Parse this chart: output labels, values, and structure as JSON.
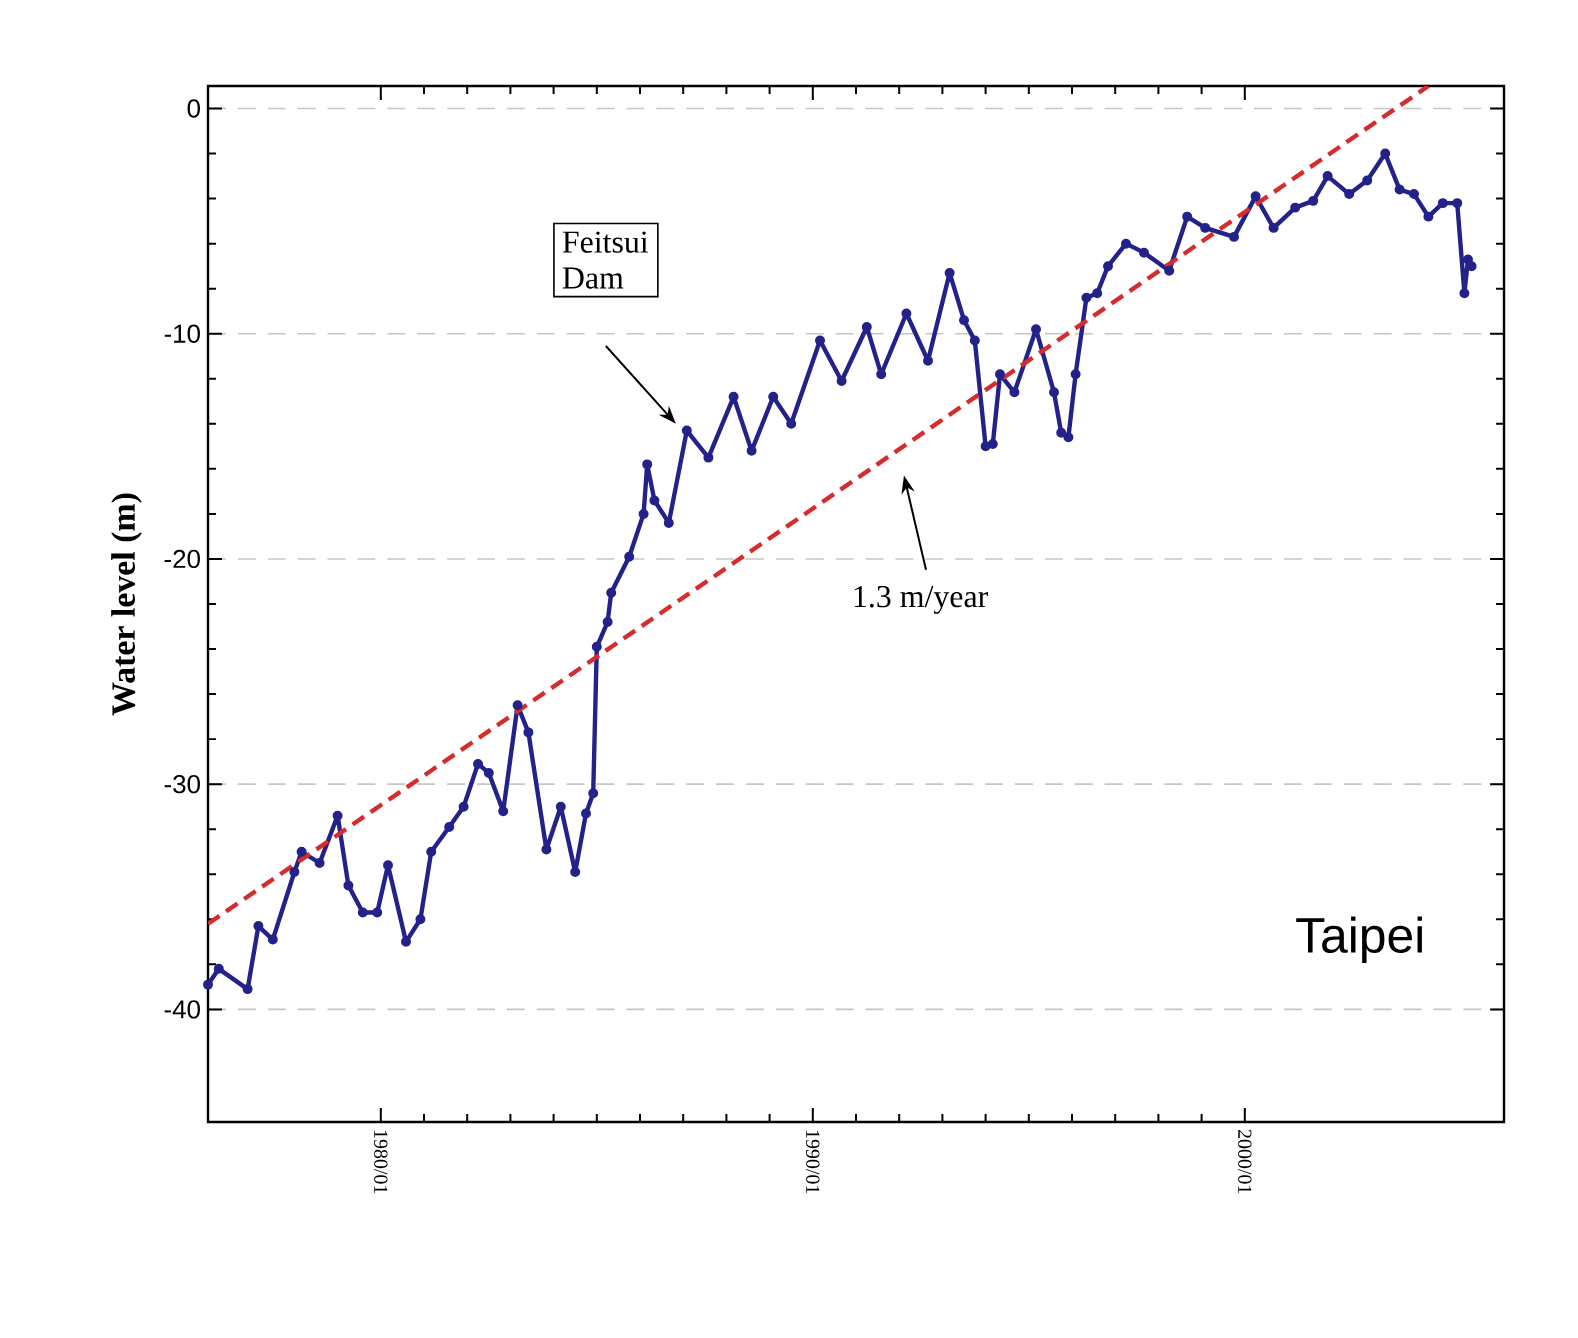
{
  "chart_data": {
    "type": "line",
    "ylabel": "Water level (m)",
    "xlim": [
      "1976-01",
      "2006-01"
    ],
    "ylim": [
      -45,
      1
    ],
    "xticks": [
      {
        "value": "1980-01",
        "label": "1980/01"
      },
      {
        "value": "1990-01",
        "label": "1990/01"
      },
      {
        "value": "2000-01",
        "label": "2000/01"
      }
    ],
    "yticks": [
      -40,
      -30,
      -20,
      -10,
      0
    ],
    "grid": "y",
    "series": [
      {
        "color": "#22228a",
        "marker": "circle",
        "line_style": "solid",
        "x": [
          "1976-01",
          "1976-04",
          "1976-12",
          "1977-03",
          "1977-07",
          "1978-01",
          "1978-03",
          "1978-08",
          "1979-01",
          "1979-04",
          "1979-08",
          "1979-12",
          "1980-03",
          "1980-08",
          "1980-12",
          "1981-03",
          "1981-08",
          "1981-12",
          "1982-04",
          "1982-07",
          "1982-11",
          "1983-03",
          "1983-06",
          "1983-11",
          "1984-03",
          "1984-07",
          "1984-10",
          "1984-12",
          "1985-01",
          "1985-04",
          "1985-05",
          "1985-10",
          "1986-02",
          "1986-03",
          "1986-05",
          "1986-09",
          "1987-02",
          "1987-08",
          "1988-03",
          "1988-08",
          "1989-02",
          "1989-07",
          "1990-03",
          "1990-09",
          "1991-04",
          "1991-08",
          "1992-03",
          "1992-09",
          "1993-03",
          "1993-07",
          "1993-10",
          "1994-01",
          "1994-03",
          "1994-05",
          "1994-09",
          "1995-03",
          "1995-08",
          "1995-10",
          "1995-12",
          "1996-02",
          "1996-05",
          "1996-08",
          "1996-11",
          "1997-04",
          "1997-09",
          "1998-04",
          "1998-09",
          "1999-02",
          "1999-10",
          "2000-04",
          "2000-09",
          "2001-03",
          "2001-08",
          "2001-12",
          "2002-06",
          "2002-11",
          "2003-04",
          "2003-08",
          "2003-12",
          "2004-04",
          "2004-08",
          "2004-12",
          "2005-02",
          "2005-03",
          "2005-04"
        ],
        "values": [
          -38.9,
          -38.2,
          -39.1,
          -36.3,
          -36.9,
          -33.9,
          -33.0,
          -33.5,
          -31.4,
          -34.5,
          -35.7,
          -35.7,
          -33.6,
          -37.0,
          -36.0,
          -33.0,
          -31.9,
          -31.0,
          -29.1,
          -29.5,
          -31.2,
          -26.5,
          -27.7,
          -32.9,
          -31.0,
          -33.9,
          -31.3,
          -30.4,
          -23.9,
          -22.8,
          -21.5,
          -19.9,
          -18.0,
          -15.8,
          -17.4,
          -18.4,
          -14.3,
          -15.5,
          -12.8,
          -15.2,
          -12.8,
          -14.0,
          -10.3,
          -12.1,
          -9.7,
          -11.8,
          -9.1,
          -11.2,
          -7.3,
          -9.4,
          -10.3,
          -15.0,
          -14.9,
          -11.8,
          -12.6,
          -9.8,
          -12.6,
          -14.4,
          -14.6,
          -11.8,
          -8.4,
          -8.2,
          -7.0,
          -6.0,
          -6.4,
          -7.2,
          -4.8,
          -5.3,
          -5.7,
          -3.9,
          -5.3,
          -4.4,
          -4.1,
          -3.0,
          -3.8,
          -3.2,
          -2.0,
          -3.6,
          -3.8,
          -4.8,
          -4.2,
          -4.2,
          -8.2,
          -6.7,
          -7.0
        ]
      },
      {
        "color": "#d62c2c",
        "marker": "none",
        "line_style": "dashed",
        "x": [
          "1976-01",
          "2004-04"
        ],
        "values": [
          -36.2,
          1
        ]
      }
    ],
    "annotations": [
      "Feitsui Dam",
      "1.3 m/year",
      "Taipei"
    ]
  }
}
